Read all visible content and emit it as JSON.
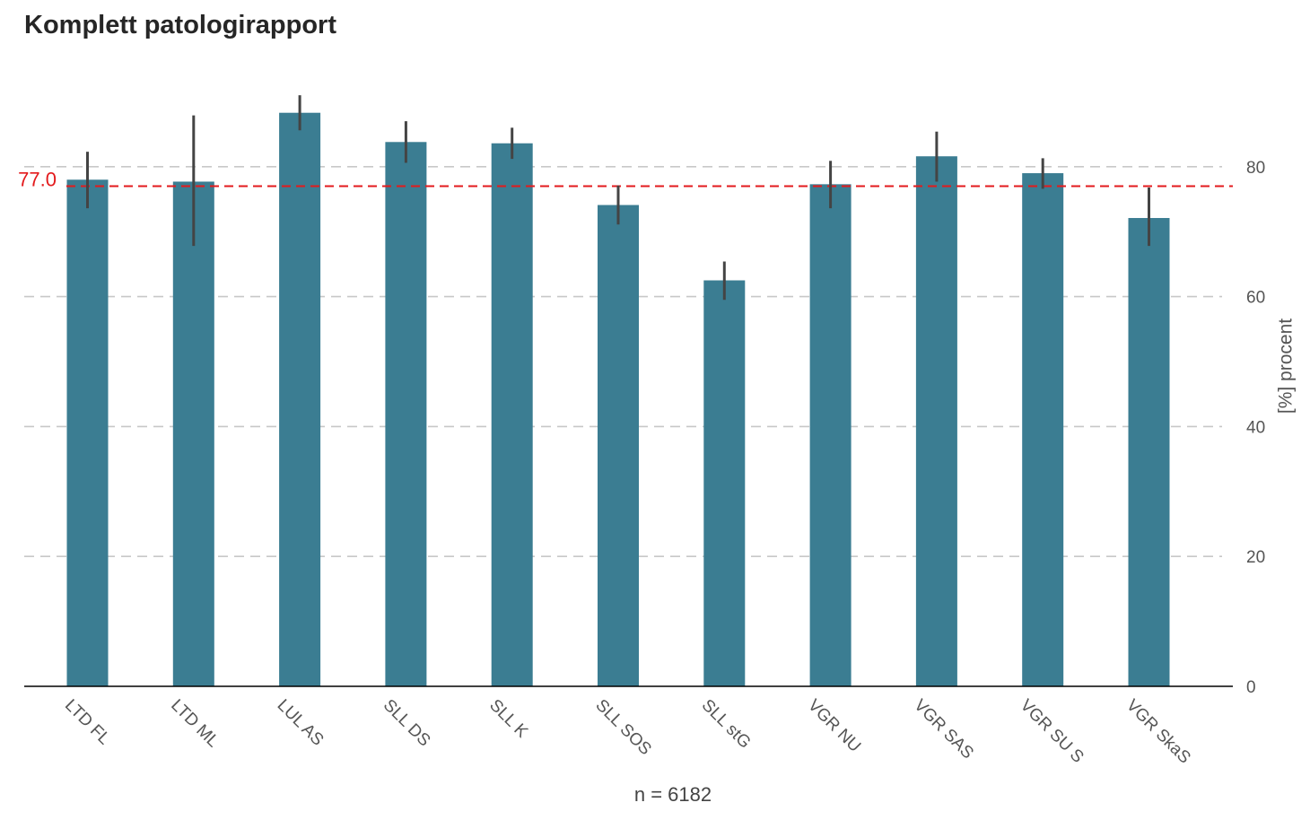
{
  "chart_data": {
    "type": "bar",
    "title": "Komplett patologirapport",
    "xlabel": "n = 6182",
    "ylabel": "[%] procent",
    "categories": [
      "LTD FL",
      "LTD ML",
      "LUL AS",
      "SLL DS",
      "SLL K",
      "SLL SOS",
      "SLL stG",
      "VGR NU",
      "VGR SAS",
      "VGR SU S",
      "VGR SkaS"
    ],
    "values": [
      78.0,
      77.7,
      88.3,
      83.8,
      83.6,
      74.1,
      62.5,
      77.3,
      81.6,
      79.0,
      72.1
    ],
    "error_low": [
      73.6,
      67.8,
      85.6,
      80.6,
      81.2,
      71.1,
      59.5,
      73.6,
      77.7,
      76.6,
      67.8
    ],
    "error_high": [
      82.3,
      87.9,
      91.0,
      87.0,
      86.0,
      77.1,
      65.4,
      80.9,
      85.4,
      81.3,
      76.8
    ],
    "ylim": [
      0,
      92
    ],
    "yticks": [
      0,
      20,
      40,
      60,
      80
    ],
    "y_axis_side": "right",
    "grid": true,
    "reference_line": {
      "value": 77.0,
      "label": "77.0"
    },
    "colors": {
      "bar": "#3b7d92",
      "error": "#444444",
      "reference": "#e31a1c",
      "grid": "#c8c8c8",
      "axis": "#000000"
    }
  }
}
